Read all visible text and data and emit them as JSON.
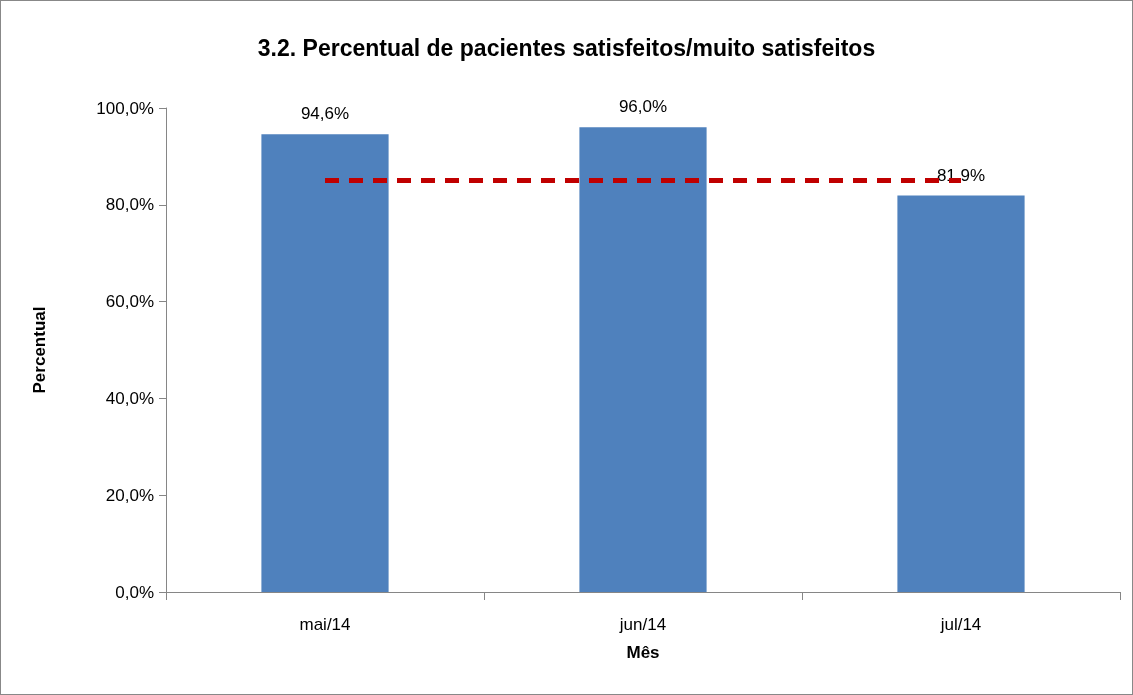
{
  "chart_data": {
    "type": "bar",
    "title": "3.2. Percentual de pacientes satisfeitos/muito satisfeitos",
    "xlabel": "Mês",
    "ylabel": "Percentual",
    "categories": [
      "mai/14",
      "jun/14",
      "jul/14"
    ],
    "series": [
      {
        "color": "#4f81bd",
        "values": [
          94.6,
          96.0,
          81.9
        ],
        "value_labels": [
          "94,6%",
          "96,0%",
          "81,9%"
        ]
      },
      {
        "type": "line",
        "color": "#c00000",
        "values": [
          85,
          85,
          85
        ],
        "line_style": "dashed",
        "marker": "none"
      }
    ],
    "ylim": [
      0,
      100
    ],
    "yticks": [
      {
        "value": 0,
        "label": "0,0%"
      },
      {
        "value": 20,
        "label": "20,0%"
      },
      {
        "value": 40,
        "label": "40,0%"
      },
      {
        "value": 60,
        "label": "60,0%"
      },
      {
        "value": 80,
        "label": "80,0%"
      },
      {
        "value": 100,
        "label": "100,0%"
      }
    ],
    "grid": false
  }
}
